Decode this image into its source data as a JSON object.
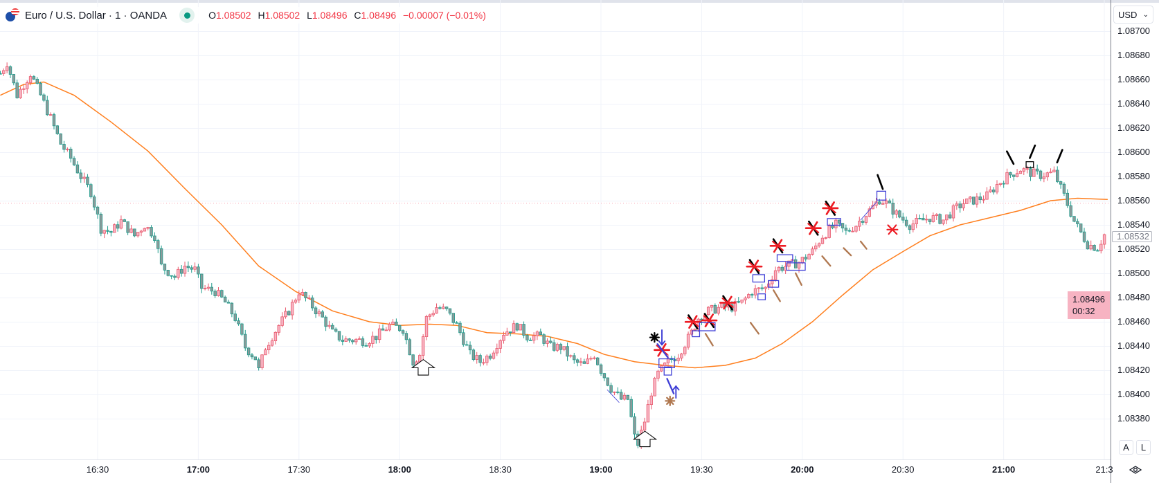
{
  "header": {
    "symbol": "Euro / U.S. Dollar · 1 · OANDA",
    "o_label": "O",
    "o": "1.08502",
    "h_label": "H",
    "h": "1.08502",
    "l_label": "L",
    "l": "1.08496",
    "c_label": "C",
    "c": "1.08496",
    "change": "−0.00007 (−0.01%)"
  },
  "price_axis": {
    "currency": "USD",
    "labels": [
      "1.08700",
      "1.08680",
      "1.08660",
      "1.08640",
      "1.08620",
      "1.08600",
      "1.08580",
      "1.08560",
      "1.08540",
      "1.08520",
      "1.08500",
      "1.08480",
      "1.08460",
      "1.08440",
      "1.08420",
      "1.08400",
      "1.08380"
    ],
    "last_price": "1.08532",
    "current_price": "1.08496",
    "countdown": "00:32",
    "auto_button": "A",
    "log_button": "L"
  },
  "time_axis": {
    "labels": [
      "16:30",
      "17:00",
      "17:30",
      "18:00",
      "18:30",
      "19:00",
      "19:30",
      "20:00",
      "20:30",
      "21:00",
      "21:3"
    ]
  },
  "colors": {
    "up_fill": "#f7b3c2",
    "up_border": "#e8576b",
    "down_fill": "#8c9a9a",
    "down_border": "#1f9c8c",
    "ma": "#ff7f1e",
    "accent": "#2962ff"
  },
  "chart_data": {
    "type": "candlestick",
    "timeframe_minutes": 1,
    "start_time": "16:00",
    "price_close_path": [
      [
        1,
        1.08665
      ],
      [
        3,
        1.08674
      ],
      [
        6,
        1.08647
      ],
      [
        10,
        1.08665
      ],
      [
        13,
        1.08647
      ],
      [
        16,
        1.08628
      ],
      [
        19,
        1.08607
      ],
      [
        22,
        1.08595
      ],
      [
        25,
        1.0858
      ],
      [
        28,
        1.08567
      ],
      [
        31,
        1.08537
      ],
      [
        34,
        1.08534
      ],
      [
        37,
        1.08543
      ],
      [
        41,
        1.08531
      ],
      [
        44,
        1.0854
      ],
      [
        47,
        1.08531
      ],
      [
        49,
        1.08506
      ],
      [
        53,
        1.08497
      ],
      [
        56,
        1.08506
      ],
      [
        59,
        1.08503
      ],
      [
        61,
        1.08488
      ],
      [
        65,
        1.08485
      ],
      [
        68,
        1.08476
      ],
      [
        71,
        1.08463
      ],
      [
        74,
        1.08439
      ],
      [
        77,
        1.0843
      ],
      [
        78,
        1.0842
      ],
      [
        80,
        1.08439
      ],
      [
        84,
        1.08457
      ],
      [
        87,
        1.08469
      ],
      [
        90,
        1.08485
      ],
      [
        93,
        1.08476
      ],
      [
        97,
        1.08463
      ],
      [
        100,
        1.08451
      ],
      [
        103,
        1.08445
      ],
      [
        107,
        1.08445
      ],
      [
        110,
        1.08444
      ],
      [
        113,
        1.08448
      ],
      [
        117,
        1.08457
      ],
      [
        121,
        1.08454
      ],
      [
        124,
        1.08427
      ],
      [
        126,
        1.08433
      ],
      [
        128,
        1.08463
      ],
      [
        131,
        1.08472
      ],
      [
        134,
        1.08469
      ],
      [
        137,
        1.08457
      ],
      [
        141,
        1.08433
      ],
      [
        144,
        1.08427
      ],
      [
        147,
        1.08433
      ],
      [
        151,
        1.08451
      ],
      [
        155,
        1.08457
      ],
      [
        158,
        1.08448
      ],
      [
        162,
        1.08448
      ],
      [
        165,
        1.08439
      ],
      [
        168,
        1.08439
      ],
      [
        172,
        1.08427
      ],
      [
        175,
        1.08424
      ],
      [
        178,
        1.08433
      ],
      [
        180,
        1.0842
      ],
      [
        183,
        1.08405
      ],
      [
        186,
        1.08396
      ],
      [
        188,
        1.08396
      ],
      [
        190,
        1.08365
      ],
      [
        191,
        1.08359
      ],
      [
        193,
        1.08378
      ],
      [
        195,
        1.08402
      ],
      [
        197,
        1.08417
      ],
      [
        200,
        1.08427
      ],
      [
        203,
        1.08433
      ],
      [
        207,
        1.08451
      ],
      [
        209,
        1.08463
      ],
      [
        212,
        1.08469
      ],
      [
        216,
        1.08472
      ],
      [
        219,
        1.08472
      ],
      [
        222,
        1.08476
      ],
      [
        225,
        1.08485
      ],
      [
        229,
        1.08488
      ],
      [
        232,
        1.08503
      ],
      [
        235,
        1.08506
      ],
      [
        239,
        1.08509
      ],
      [
        243,
        1.08518
      ],
      [
        246,
        1.08531
      ],
      [
        250,
        1.0854
      ],
      [
        253,
        1.08534
      ],
      [
        256,
        1.0854
      ],
      [
        260,
        1.08552
      ],
      [
        263,
        1.08561
      ],
      [
        265,
        1.08558
      ],
      [
        268,
        1.08549
      ],
      [
        272,
        1.0854
      ],
      [
        275,
        1.08543
      ],
      [
        278,
        1.08546
      ],
      [
        282,
        1.08544
      ],
      [
        285,
        1.08552
      ],
      [
        288,
        1.08558
      ],
      [
        292,
        1.08561
      ],
      [
        295,
        1.08564
      ],
      [
        298,
        1.08573
      ],
      [
        301,
        1.0858
      ],
      [
        305,
        1.08586
      ],
      [
        308,
        1.08583
      ],
      [
        311,
        1.08581
      ],
      [
        315,
        1.08583
      ],
      [
        318,
        1.08564
      ],
      [
        321,
        1.08543
      ],
      [
        325,
        1.08524
      ],
      [
        328,
        1.08521
      ],
      [
        330,
        1.08532
      ]
    ],
    "moving_average": [
      [
        1,
        1.08647
      ],
      [
        8,
        1.08656
      ],
      [
        14,
        1.08658
      ],
      [
        23,
        1.08647
      ],
      [
        34,
        1.08625
      ],
      [
        45,
        1.08601
      ],
      [
        56,
        1.0857
      ],
      [
        67,
        1.0854
      ],
      [
        78,
        1.08506
      ],
      [
        89,
        1.08485
      ],
      [
        100,
        1.08469
      ],
      [
        111,
        1.0846
      ],
      [
        120,
        1.08457
      ],
      [
        129,
        1.08458
      ],
      [
        137,
        1.08457
      ],
      [
        146,
        1.08451
      ],
      [
        155,
        1.0845
      ],
      [
        164,
        1.08448
      ],
      [
        173,
        1.08442
      ],
      [
        181,
        1.08433
      ],
      [
        190,
        1.08427
      ],
      [
        199,
        1.08424
      ],
      [
        208,
        1.08422
      ],
      [
        217,
        1.08424
      ],
      [
        226,
        1.0843
      ],
      [
        234,
        1.08442
      ],
      [
        243,
        1.0846
      ],
      [
        252,
        1.08482
      ],
      [
        261,
        1.08503
      ],
      [
        270,
        1.08518
      ],
      [
        278,
        1.08531
      ],
      [
        287,
        1.0854
      ],
      [
        296,
        1.08546
      ],
      [
        305,
        1.08552
      ],
      [
        314,
        1.0856
      ],
      [
        322,
        1.08562
      ],
      [
        331,
        1.08561
      ]
    ],
    "price_line": 1.08558,
    "ylim": [
      1.0836,
      1.0871
    ]
  }
}
